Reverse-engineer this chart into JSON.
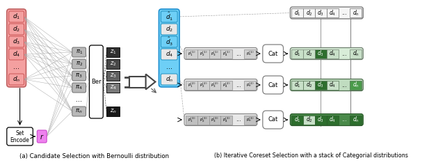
{
  "fig_width": 6.4,
  "fig_height": 2.37,
  "dpi": 100,
  "pink": "#f4a0a0",
  "blue": "#6ecff6",
  "gray_light": "#b8b8b8",
  "gray_dark1": "#303030",
  "gray_dark2": "#484848",
  "gray_dark3": "#585858",
  "gray_dark4": "#686868",
  "gray_darkn": "#202020",
  "green_light": "#90c890",
  "green_mid": "#4a9a4a",
  "green_dark": "#2d6e2d",
  "magenta": "#ee82ee",
  "white": "#ffffff",
  "black": "#000000",
  "light_gray_box": "#e0e0e0",
  "caption_a": "(a) Candidate Selection with Bernoulli distribution",
  "caption_b": "(b) Iterative Coreset Selection with a stack of Categorial distributions"
}
